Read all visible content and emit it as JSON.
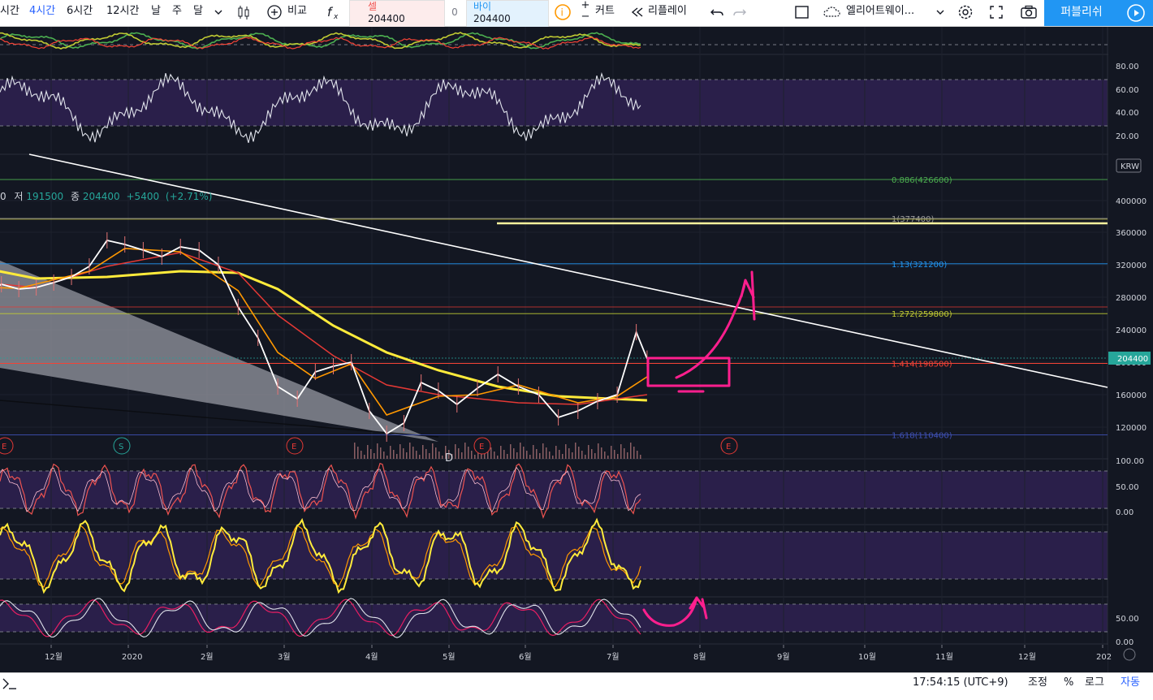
{
  "toolbar": {
    "intervals": [
      {
        "label": "시간",
        "active": false
      },
      {
        "label": "4시간",
        "active": true
      },
      {
        "label": "6시간",
        "active": false
      },
      {
        "label": "12시간",
        "active": false
      },
      {
        "label": "날",
        "active": false
      },
      {
        "label": "주",
        "active": false
      },
      {
        "label": "달",
        "active": false
      }
    ],
    "compare_label": "비교",
    "sell_label": "셀",
    "sell_price": "204400",
    "spread": "0",
    "buy_label": "바이",
    "buy_price": "204400",
    "alert_label": "커트",
    "replay_label": "리플레이",
    "layout_name": "엘리어트웨이...",
    "publish_label": "퍼블리쉬"
  },
  "legend": {
    "low_label": "저",
    "low": "191500",
    "close_label": "종",
    "close": "204400",
    "change": "+5400",
    "change_pct": "(+2.71%)",
    "prefix": "0"
  },
  "chart_data": {
    "type": "line",
    "currency": "KRW",
    "last_price": "204400",
    "price_axis_ticks": [
      "400000",
      "360000",
      "320000",
      "280000",
      "240000",
      "200000",
      "160000",
      "120000"
    ],
    "time_axis_labels": [
      "12월",
      "2020",
      "2월",
      "3월",
      "4월",
      "5월",
      "6월",
      "7월",
      "8월",
      "9월",
      "10월",
      "11월",
      "12월",
      "202"
    ],
    "fib_levels": [
      {
        "label": "0.886(426600)",
        "value": 426600,
        "color": "#4caf50"
      },
      {
        "label": "1(377400)",
        "value": 377400,
        "color": "#9e9e9e"
      },
      {
        "label": "1.13(321200)",
        "value": 321200,
        "color": "#2196f3"
      },
      {
        "label": "1.272(259800)",
        "value": 259800,
        "color": "#c0ca33"
      },
      {
        "label": "1.414(198500)",
        "value": 198500,
        "color": "#f44336"
      },
      {
        "label": "1.618(110400)",
        "value": 110400,
        "color": "#3f51b5"
      }
    ],
    "event_markers": [
      "E",
      "S",
      "E",
      "E",
      "E"
    ],
    "wave_label": "D",
    "rsi_ticks": [
      "80.00",
      "60.00",
      "40.00",
      "20.00"
    ],
    "stoch_ticks": [
      "100.00",
      "50.00",
      "0.00"
    ],
    "osc_ticks": [
      "50.00",
      "0.00"
    ],
    "close_series": [
      [
        "2019-11-28",
        295000
      ],
      [
        "2019-12-05",
        282000
      ],
      [
        "2019-12-12",
        296000
      ],
      [
        "2019-12-19",
        290000
      ],
      [
        "2019-12-26",
        292000
      ],
      [
        "2020-01-02",
        298000
      ],
      [
        "2020-01-09",
        305000
      ],
      [
        "2020-01-16",
        318000
      ],
      [
        "2020-01-23",
        350000
      ],
      [
        "2020-01-30",
        345000
      ],
      [
        "2020-02-06",
        338000
      ],
      [
        "2020-02-13",
        330000
      ],
      [
        "2020-02-20",
        342000
      ],
      [
        "2020-02-27",
        338000
      ],
      [
        "2020-03-05",
        320000
      ],
      [
        "2020-03-12",
        268000
      ],
      [
        "2020-03-19",
        230000
      ],
      [
        "2020-03-26",
        170000
      ],
      [
        "2020-04-02",
        155000
      ],
      [
        "2020-04-09",
        188000
      ],
      [
        "2020-04-16",
        195000
      ],
      [
        "2020-04-23",
        200000
      ],
      [
        "2020-04-30",
        140000
      ],
      [
        "2020-05-07",
        112000
      ],
      [
        "2020-05-14",
        125000
      ],
      [
        "2020-05-21",
        175000
      ],
      [
        "2020-05-28",
        165000
      ],
      [
        "2020-06-04",
        148000
      ],
      [
        "2020-06-11",
        168000
      ],
      [
        "2020-06-18",
        185000
      ],
      [
        "2020-06-25",
        170000
      ],
      [
        "2020-07-02",
        160000
      ],
      [
        "2020-07-09",
        132000
      ],
      [
        "2020-07-16",
        140000
      ],
      [
        "2020-07-23",
        152000
      ],
      [
        "2020-07-30",
        160000
      ],
      [
        "2020-08-06",
        237000
      ],
      [
        "2020-08-10",
        204400
      ]
    ],
    "ma_fast": [
      [
        "2019-11-28",
        293000
      ],
      [
        "2019-12-19",
        291000
      ],
      [
        "2020-01-16",
        312000
      ],
      [
        "2020-01-30",
        340000
      ],
      [
        "2020-02-20",
        336000
      ],
      [
        "2020-03-12",
        288000
      ],
      [
        "2020-03-26",
        212000
      ],
      [
        "2020-04-09",
        180000
      ],
      [
        "2020-04-23",
        198000
      ],
      [
        "2020-05-07",
        135000
      ],
      [
        "2020-05-28",
        158000
      ],
      [
        "2020-06-11",
        160000
      ],
      [
        "2020-06-25",
        172000
      ],
      [
        "2020-07-16",
        150000
      ],
      [
        "2020-07-30",
        158000
      ],
      [
        "2020-08-10",
        182000
      ]
    ],
    "ma_mid": [
      [
        "2019-11-28",
        300000
      ],
      [
        "2019-12-26",
        292000
      ],
      [
        "2020-01-23",
        318000
      ],
      [
        "2020-02-20",
        335000
      ],
      [
        "2020-03-12",
        310000
      ],
      [
        "2020-03-26",
        258000
      ],
      [
        "2020-04-16",
        208000
      ],
      [
        "2020-05-07",
        172000
      ],
      [
        "2020-05-28",
        160000
      ],
      [
        "2020-06-25",
        150000
      ],
      [
        "2020-07-16",
        148000
      ],
      [
        "2020-08-10",
        160000
      ]
    ],
    "ma_slow": [
      [
        "2019-11-28",
        320000
      ],
      [
        "2019-12-26",
        303000
      ],
      [
        "2020-01-23",
        305000
      ],
      [
        "2020-02-20",
        312000
      ],
      [
        "2020-03-12",
        310000
      ],
      [
        "2020-03-26",
        290000
      ],
      [
        "2020-04-16",
        245000
      ],
      [
        "2020-05-07",
        212000
      ],
      [
        "2020-05-28",
        190000
      ],
      [
        "2020-06-18",
        170000
      ],
      [
        "2020-07-09",
        158000
      ],
      [
        "2020-08-10",
        153000
      ]
    ]
  },
  "status": {
    "clock": "17:54:15 (UTC+9)",
    "adjust_label": "조정",
    "percent_label": "%",
    "log_label": "로그",
    "auto_label": "자동"
  }
}
